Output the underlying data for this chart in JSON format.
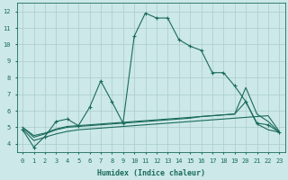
{
  "xlabel": "Humidex (Indice chaleur)",
  "xlim": [
    -0.5,
    23.5
  ],
  "ylim": [
    3.5,
    12.5
  ],
  "xticks": [
    0,
    1,
    2,
    3,
    4,
    5,
    6,
    7,
    8,
    9,
    10,
    11,
    12,
    13,
    14,
    15,
    16,
    17,
    18,
    19,
    20,
    21,
    22,
    23
  ],
  "yticks": [
    4,
    5,
    6,
    7,
    8,
    9,
    10,
    11,
    12
  ],
  "bg_color": "#cce8e8",
  "grid_color": "#aacccc",
  "line_color": "#1a6b5a",
  "line1_x": [
    0,
    1,
    2,
    3,
    4,
    5,
    6,
    7,
    8,
    9,
    10,
    11,
    12,
    13,
    14,
    15,
    16,
    17,
    18,
    19,
    20,
    21,
    22,
    23
  ],
  "line1_y": [
    4.85,
    3.8,
    4.45,
    5.35,
    5.5,
    5.1,
    6.2,
    7.8,
    6.55,
    5.25,
    10.5,
    11.9,
    11.6,
    11.6,
    10.3,
    9.9,
    9.65,
    8.3,
    8.3,
    7.5,
    6.55,
    5.25,
    5.15,
    4.7
  ],
  "line2_x": [
    0,
    1,
    2,
    3,
    4,
    5,
    6,
    7,
    8,
    9,
    10,
    11,
    12,
    13,
    14,
    15,
    16,
    17,
    18,
    19,
    20,
    21,
    22,
    23
  ],
  "line2_y": [
    5.0,
    4.5,
    4.65,
    4.9,
    5.05,
    5.1,
    5.15,
    5.2,
    5.25,
    5.3,
    5.35,
    5.4,
    5.45,
    5.5,
    5.55,
    5.6,
    5.65,
    5.7,
    5.75,
    5.8,
    6.55,
    5.2,
    4.85,
    4.7
  ],
  "line3_x": [
    0,
    1,
    2,
    3,
    4,
    5,
    6,
    7,
    8,
    9,
    10,
    11,
    12,
    13,
    14,
    15,
    16,
    17,
    18,
    19,
    20,
    21,
    22,
    23
  ],
  "line3_y": [
    5.0,
    4.4,
    4.6,
    4.85,
    5.0,
    5.05,
    5.1,
    5.15,
    5.2,
    5.25,
    5.3,
    5.35,
    5.4,
    5.45,
    5.5,
    5.55,
    5.65,
    5.7,
    5.75,
    5.8,
    7.4,
    5.8,
    5.35,
    4.7
  ],
  "line4_x": [
    0,
    1,
    2,
    3,
    4,
    5,
    6,
    7,
    8,
    9,
    10,
    11,
    12,
    13,
    14,
    15,
    16,
    17,
    18,
    19,
    20,
    21,
    22,
    23
  ],
  "line4_y": [
    4.9,
    4.2,
    4.4,
    4.6,
    4.75,
    4.85,
    4.9,
    4.95,
    5.0,
    5.05,
    5.1,
    5.15,
    5.2,
    5.25,
    5.3,
    5.35,
    5.4,
    5.45,
    5.5,
    5.55,
    5.6,
    5.65,
    5.7,
    4.75
  ]
}
